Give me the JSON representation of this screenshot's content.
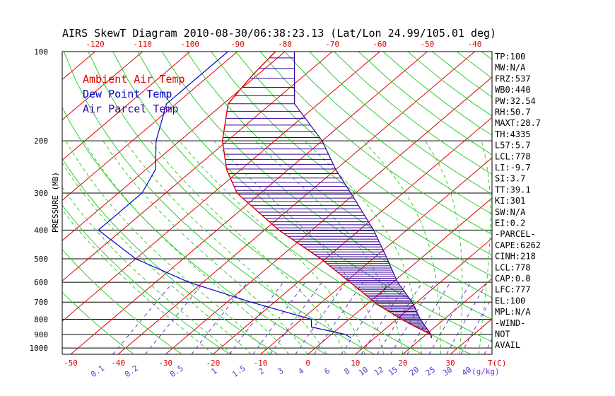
{
  "chart_data": {
    "type": "line",
    "title": "AIRS SkewT Diagram 2010-08-30/06:38:23.13 (Lat/Lon 24.99/105.01 deg)",
    "ylabel": "PRESSURE (MB)",
    "xlabel_bottom_unit": "T(C)",
    "mixing_ratio_unit": "(g/kg)",
    "pressure_ticks": [
      "100",
      "200",
      "300",
      "400",
      "500",
      "600",
      "700",
      "800",
      "900",
      "1000"
    ],
    "pressure_levels": [
      100,
      200,
      300,
      400,
      500,
      600,
      700,
      800,
      900,
      1000
    ],
    "top_temp_ticks": [
      "-120",
      "-110",
      "-100",
      "-90",
      "-80",
      "-70",
      "-60",
      "-50",
      "-40"
    ],
    "top_temp_values": [
      -120,
      -110,
      -100,
      -90,
      -80,
      -70,
      -60,
      -50,
      -40
    ],
    "bottom_temp_ticks": [
      "-50",
      "-40",
      "-30",
      "-20",
      "-10",
      "0",
      "10",
      "20",
      "30"
    ],
    "bottom_temp_values": [
      -50,
      -40,
      -30,
      -20,
      -10,
      0,
      10,
      20,
      30
    ],
    "mixing_ratio_ticks": [
      "0.1",
      "0.2",
      "0.5",
      "1",
      "1.5",
      "2",
      "3",
      "4",
      "6",
      "8",
      "10",
      "12",
      "15",
      "20",
      "25",
      "30",
      "40"
    ],
    "legend": [
      {
        "label": "Ambient Air Temp",
        "color": "#dd0000"
      },
      {
        "label": "Dew Point Temp",
        "color": "#0000cc"
      },
      {
        "label": "Air Parcel Temp",
        "color": "#330099"
      }
    ],
    "series": [
      {
        "name": "Ambient Air Temp",
        "color": "#dd0000",
        "pressure": [
          100,
          120,
          150,
          200,
          250,
          300,
          400,
          500,
          600,
          700,
          800,
          850,
          900,
          925
        ],
        "temperature": [
          -82,
          -81,
          -79,
          -71,
          -63,
          -55,
          -37,
          -21,
          -9,
          1,
          11,
          16,
          21,
          22
        ]
      },
      {
        "name": "Dew Point Temp",
        "color": "#0000cc",
        "pressure": [
          100,
          150,
          200,
          250,
          300,
          400,
          500,
          600,
          700,
          800,
          850,
          900,
          925
        ],
        "dewpoint": [
          -92,
          -92,
          -85,
          -78,
          -75,
          -75,
          -60,
          -43,
          -25,
          -8,
          -6,
          3,
          5
        ]
      },
      {
        "name": "Air Parcel Temp",
        "color": "#330099",
        "pressure": [
          100,
          150,
          200,
          250,
          300,
          400,
          500,
          600,
          700,
          800,
          900,
          925
        ],
        "temperature": [
          -78,
          -65,
          -50,
          -40,
          -31,
          -17,
          -7,
          1,
          9,
          15,
          21,
          22
        ]
      }
    ],
    "stats": [
      "TP:100",
      "MW:N/A",
      "FRZ:537",
      "WB0:440",
      "PW:32.54",
      "RH:50.7",
      "MAXT:28.7",
      "TH:4335",
      "L57:5.7",
      "LCL:778",
      "LI:-9.7",
      "SI:3.7",
      "TT:39.1",
      "KI:301",
      "SW:N/A",
      "EI:0.2",
      "-PARCEL-",
      "CAPE:6262",
      "CINH:218",
      "LCL:778",
      "CAP:0.0",
      "LFC:777",
      "EL:100",
      "MPL:N/A",
      "-WIND-",
      "NOT",
      "AVAIL"
    ],
    "colors": {
      "isotherm": "#dd0000",
      "dry_adiabat": "#33cc33",
      "moist_adiabat": "#33cc33",
      "mixing_ratio": "#6633cc",
      "isobar": "#000000"
    }
  }
}
